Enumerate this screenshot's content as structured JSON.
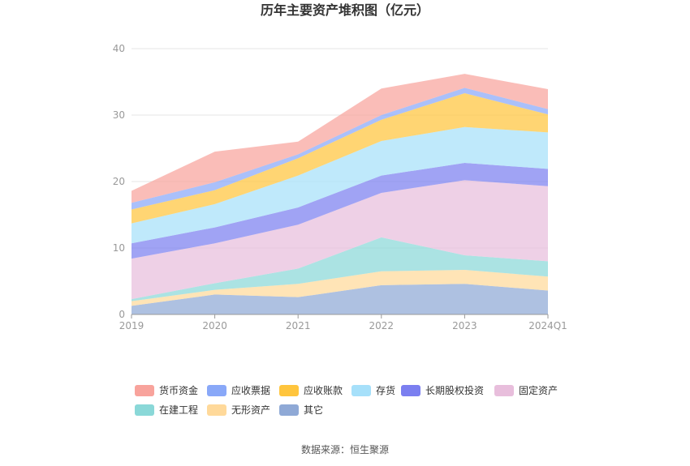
{
  "chart_data": {
    "type": "area",
    "stacked": true,
    "title": "历年主要资产堆积图（亿元）",
    "x": [
      "2019",
      "2020",
      "2021",
      "2022",
      "2023",
      "2024Q1"
    ],
    "ylim": [
      0,
      40
    ],
    "yticks": [
      0,
      10,
      20,
      30,
      40
    ],
    "grid": true,
    "legend_position": "bottom",
    "series": [
      {
        "name": "其它",
        "color": "#8fa9d6",
        "values": [
          1.3,
          3.0,
          2.6,
          4.4,
          4.6,
          3.6
        ]
      },
      {
        "name": "无形资产",
        "color": "#ffd99a",
        "values": [
          0.7,
          0.7,
          2.0,
          2.1,
          2.1,
          2.1
        ]
      },
      {
        "name": "在建工程",
        "color": "#8ad8d8",
        "values": [
          0.3,
          1.0,
          2.3,
          5.1,
          2.2,
          2.3
        ]
      },
      {
        "name": "固定资产",
        "color": "#e8bedc",
        "values": [
          6.1,
          6.0,
          6.6,
          6.7,
          11.3,
          11.3
        ]
      },
      {
        "name": "长期股权投资",
        "color": "#7b7ff0",
        "values": [
          2.3,
          2.4,
          2.6,
          2.6,
          2.6,
          2.6
        ]
      },
      {
        "name": "存货",
        "color": "#a6e0fa",
        "values": [
          3.0,
          3.5,
          4.8,
          5.2,
          5.4,
          5.5
        ]
      },
      {
        "name": "应收账款",
        "color": "#ffc53d",
        "values": [
          2.1,
          2.1,
          2.6,
          3.2,
          5.1,
          2.7
        ]
      },
      {
        "name": "应收票据",
        "color": "#89a8f8",
        "values": [
          1.0,
          1.2,
          0.6,
          0.7,
          0.8,
          0.8
        ]
      },
      {
        "name": "货币资金",
        "color": "#f8a39c",
        "values": [
          1.8,
          4.6,
          1.9,
          4.0,
          2.1,
          3.0
        ]
      }
    ],
    "legend_order": [
      "货币资金",
      "应收票据",
      "应收账款",
      "存货",
      "长期股权投资",
      "固定资产",
      "在建工程",
      "无形资产",
      "其它"
    ]
  },
  "footer": {
    "source": "数据来源：恒生聚源"
  }
}
